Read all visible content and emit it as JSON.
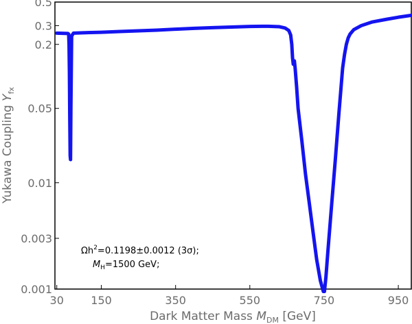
{
  "chart_data": {
    "type": "line",
    "xlabel": {
      "main": "Dark Matter Mass ",
      "var": "M",
      "sub": "DM",
      "unit": " [GeV]"
    },
    "ylabel": {
      "main": "Yukawa Coupling ",
      "var": "Y",
      "sub": "fx"
    },
    "xlim": [
      25,
      985
    ],
    "ylim": [
      0.001,
      0.5
    ],
    "yscale": "log",
    "grid": false,
    "xticks": [
      30,
      150,
      350,
      550,
      750,
      950
    ],
    "xtick_labels": [
      "30",
      "150",
      "350",
      "550",
      "750",
      "950"
    ],
    "yticks": [
      0.001,
      0.003,
      0.01,
      0.05,
      0.2,
      0.3,
      0.5
    ],
    "ytick_labels": [
      "0.001",
      "0.003",
      "0.01",
      "0.05",
      "0.2",
      "0.3",
      "0.5"
    ],
    "series": [
      {
        "color": "#1414f0",
        "x": [
          30,
          60,
          62,
          63,
          64,
          65,
          66,
          67,
          68,
          70,
          75,
          100,
          150,
          200,
          250,
          300,
          350,
          400,
          450,
          500,
          550,
          600,
          630,
          645,
          655,
          660,
          663,
          665,
          667,
          670,
          672,
          676,
          680,
          690,
          700,
          710,
          720,
          730,
          740,
          748,
          751,
          755,
          760,
          770,
          780,
          790,
          800,
          805,
          810,
          815,
          820,
          830,
          850,
          880,
          920,
          950,
          985
        ],
        "y": [
          0.255,
          0.253,
          0.25,
          0.2,
          0.11,
          0.04,
          0.018,
          0.0165,
          0.05,
          0.24,
          0.255,
          0.257,
          0.26,
          0.264,
          0.268,
          0.272,
          0.278,
          0.283,
          0.287,
          0.291,
          0.295,
          0.296,
          0.293,
          0.285,
          0.27,
          0.245,
          0.2,
          0.15,
          0.13,
          0.14,
          0.12,
          0.08,
          0.05,
          0.025,
          0.012,
          0.0065,
          0.0035,
          0.0019,
          0.0012,
          0.00095,
          0.00095,
          0.0013,
          0.0022,
          0.006,
          0.016,
          0.045,
          0.12,
          0.16,
          0.2,
          0.23,
          0.25,
          0.275,
          0.3,
          0.325,
          0.345,
          0.36,
          0.375
        ]
      }
    ],
    "annotations": [
      "Ωh²=0.1198±0.0012 (3σ);",
      "M_H=1500 GeV;"
    ],
    "annotation_text": {
      "line1_prefix": "Ωh",
      "line1_sup": "2",
      "line1_rest": "=0.1198±0.0012 (3σ);",
      "line2_var": "M",
      "line2_sub": "H",
      "line2_rest": "=1500 GeV;"
    }
  }
}
